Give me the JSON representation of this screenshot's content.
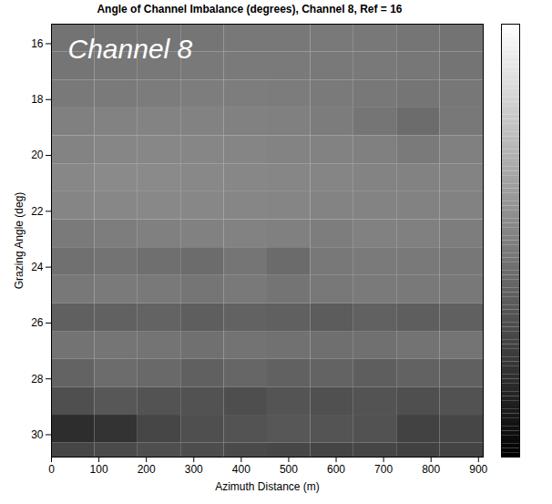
{
  "chart_data": {
    "type": "heatmap",
    "title": "Angle of Channel Imbalance (degrees), Channel 8, Ref = 16",
    "x_label": "Azimuth Distance (m)",
    "y_label": "Grazing Angle (deg)",
    "annotation": "Channel 8",
    "xlim": [
      0,
      910
    ],
    "ylim": [
      15.3,
      30.8
    ],
    "xticks": [
      0,
      100,
      200,
      300,
      400,
      500,
      600,
      700,
      800,
      900
    ],
    "yticks": [
      16,
      18,
      20,
      22,
      24,
      26,
      28,
      30
    ],
    "x_edges": [
      0,
      91,
      182,
      273,
      364,
      455,
      546,
      637,
      728,
      819,
      910
    ],
    "y_edges": [
      15.3,
      16.3,
      17.3,
      18.3,
      19.3,
      20.3,
      21.3,
      22.3,
      23.3,
      24.3,
      25.3,
      26.3,
      27.3,
      28.3,
      29.3,
      30.3,
      30.8
    ],
    "cells": [
      [
        -1,
        -1,
        -0.8,
        -0.8,
        -0.6,
        -0.6,
        -0.5,
        -0.6,
        -0.8,
        -1
      ],
      [
        -0.8,
        -0.7,
        -0.6,
        -0.5,
        -0.4,
        -0.4,
        -0.5,
        -0.5,
        -0.7,
        -0.9
      ],
      [
        -0.5,
        -0.4,
        -0.3,
        -0.2,
        -0.2,
        -0.3,
        -0.4,
        -0.6,
        -0.8,
        -0.7
      ],
      [
        0,
        0.2,
        0.3,
        0.2,
        0.1,
        0,
        -0.3,
        -0.8,
        -1.5,
        -0.6
      ],
      [
        0.3,
        0.5,
        0.6,
        0.5,
        0.4,
        0.3,
        0.2,
        0,
        -0.4,
        0
      ],
      [
        0.6,
        0.8,
        0.8,
        0.7,
        0.6,
        0.5,
        0.4,
        0.3,
        0.2,
        0.3
      ],
      [
        0.4,
        0.6,
        0.7,
        0.6,
        0.5,
        0.4,
        0.3,
        0.3,
        0.2,
        0.2
      ],
      [
        -0.4,
        -0.2,
        0,
        0.1,
        0.2,
        0,
        -0.2,
        0.1,
        0,
        -0.2
      ],
      [
        -1.2,
        -1,
        -1.3,
        -1.5,
        -0.8,
        -1.6,
        -0.6,
        -0.4,
        -0.5,
        -0.7
      ],
      [
        -0.6,
        -0.4,
        -0.5,
        -0.8,
        -0.5,
        -0.9,
        -0.6,
        -0.4,
        -0.5,
        -0.6
      ],
      [
        -2.5,
        -2.4,
        -2.2,
        -2.6,
        -2.3,
        -2.5,
        -2.8,
        -2.4,
        -2.6,
        -2.5
      ],
      [
        -1,
        -0.8,
        -0.9,
        -1.2,
        -1,
        -1.1,
        -1.3,
        -1.2,
        -1,
        -0.9
      ],
      [
        -2.2,
        -1.5,
        -1.8,
        -2.5,
        -2,
        -2.4,
        -2.2,
        -2.6,
        -2.3,
        -2.5
      ],
      [
        -3.8,
        -3.2,
        -3.5,
        -3.6,
        -3.9,
        -3.4,
        -3.7,
        -3.5,
        -3.8,
        -3.6
      ],
      [
        -6.5,
        -6,
        -4.5,
        -3.8,
        -3.5,
        -3.2,
        -3.4,
        -3.6,
        -4.8,
        -4.5
      ],
      [
        -4.5,
        -4.2,
        -3.8,
        -4,
        -4.2,
        -4.4,
        -4.6,
        -4.5,
        -4.9,
        -4.7
      ]
    ],
    "zlim": [
      -10,
      10
    ],
    "color": [
      "#000000",
      "#ffffff"
    ]
  }
}
